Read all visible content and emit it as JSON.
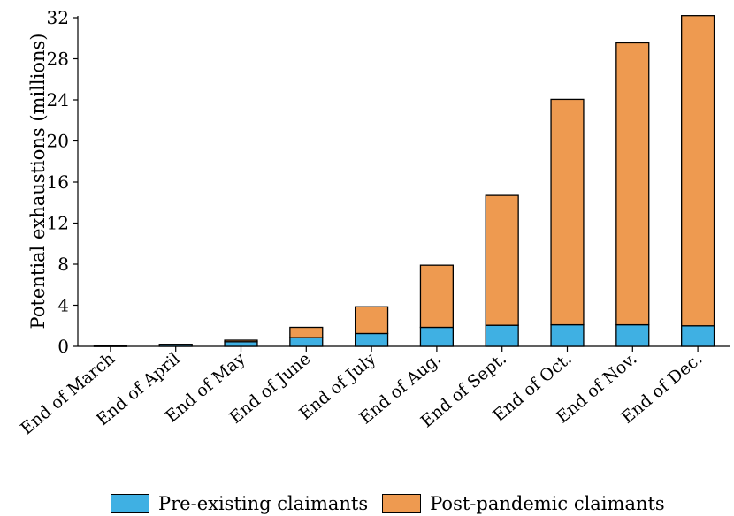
{
  "chart_data": {
    "type": "bar",
    "stacked": true,
    "categories": [
      "End of March",
      "End of April",
      "End of May",
      "End of June",
      "End of July",
      "End of Aug.",
      "End of Sept.",
      "End of Oct.",
      "End of Nov.",
      "End of Dec."
    ],
    "series": [
      {
        "name": "Pre-existing claimants",
        "color": "#3fb0e3",
        "values": [
          0.05,
          0.15,
          0.45,
          0.85,
          1.25,
          1.85,
          2.05,
          2.1,
          2.1,
          2.0
        ]
      },
      {
        "name": "Post-pandemic claimants",
        "color": "#ee9a50",
        "values": [
          0.0,
          0.05,
          0.15,
          1.0,
          2.6,
          6.05,
          12.65,
          21.95,
          27.45,
          30.2
        ]
      }
    ],
    "title": "",
    "xlabel": "",
    "ylabel": "Potential exhaustions (millions)",
    "ylim": [
      0,
      32
    ],
    "yticks": [
      0,
      4,
      8,
      12,
      16,
      20,
      24,
      28,
      32
    ],
    "grid": false,
    "legend_position": "bottom"
  }
}
